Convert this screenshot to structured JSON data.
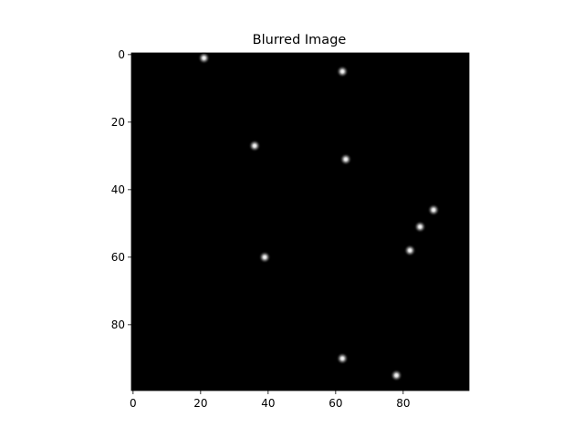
{
  "chart_data": {
    "type": "heatmap",
    "title": "Blurred Image",
    "xlabel": "",
    "ylabel": "",
    "image_size": [
      100,
      100
    ],
    "xlim": [
      -0.5,
      99.5
    ],
    "ylim": [
      99.5,
      -0.5
    ],
    "y_axis_inverted": true,
    "colormap": "gray",
    "background_value": 0,
    "grid": false,
    "x_ticks": [
      0,
      20,
      40,
      60,
      80
    ],
    "y_ticks": [
      0,
      20,
      40,
      60,
      80
    ],
    "points": [
      {
        "x": 21,
        "y": 1
      },
      {
        "x": 62,
        "y": 5
      },
      {
        "x": 36,
        "y": 27
      },
      {
        "x": 63,
        "y": 31
      },
      {
        "x": 89,
        "y": 46
      },
      {
        "x": 85,
        "y": 51
      },
      {
        "x": 82,
        "y": 58
      },
      {
        "x": 39,
        "y": 60
      },
      {
        "x": 62,
        "y": 90
      },
      {
        "x": 78,
        "y": 95
      }
    ]
  }
}
